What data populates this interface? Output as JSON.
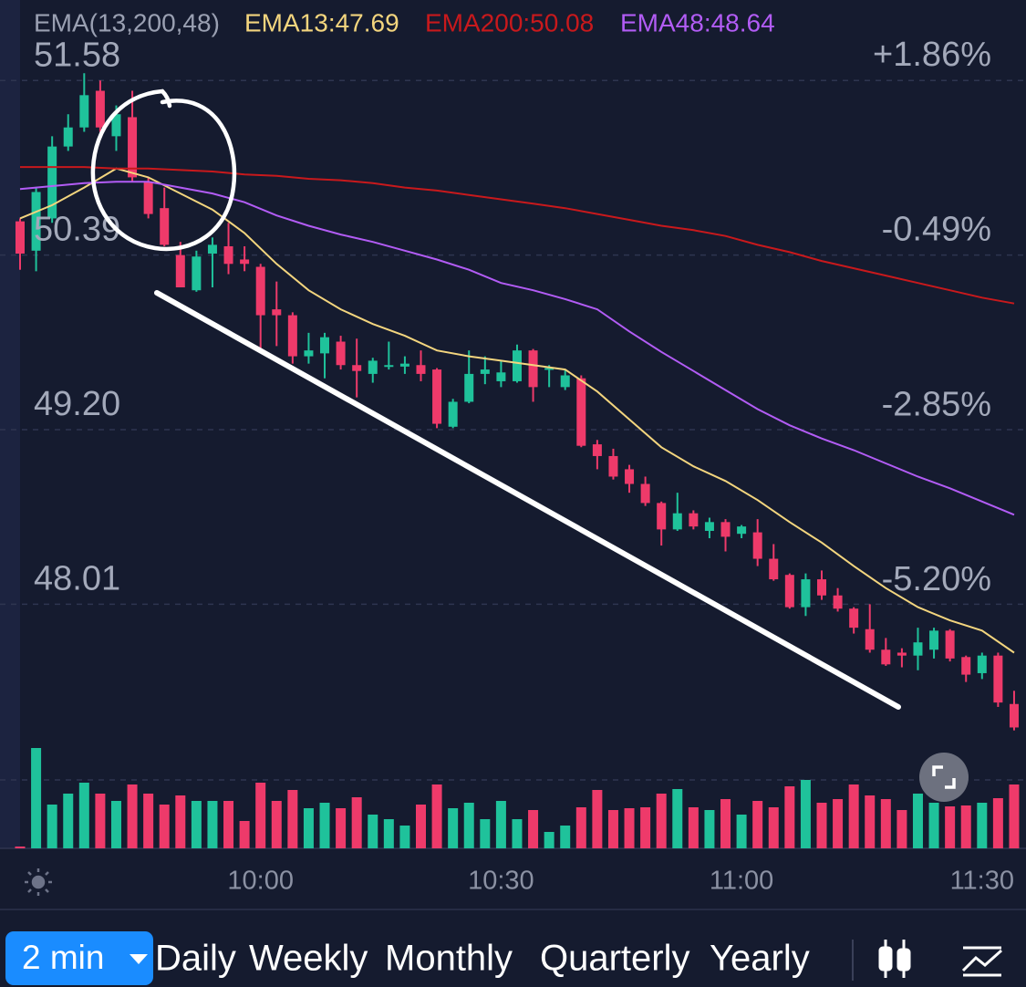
{
  "chart_data": {
    "type": "candlestick",
    "legend": {
      "label": "EMA(13,200,48)",
      "items": [
        {
          "text": "EMA13:47.69",
          "color": "#f3d57e"
        },
        {
          "text": "EMA200:50.08",
          "color": "#c8191c"
        },
        {
          "text": "EMA48:48.64",
          "color": "#b25cf5"
        }
      ]
    },
    "categories": [
      null,
      null,
      null,
      null,
      null,
      null,
      null,
      null,
      null,
      null,
      null,
      null,
      null,
      null,
      null,
      "10:00",
      null,
      null,
      null,
      null,
      null,
      null,
      null,
      null,
      null,
      null,
      null,
      null,
      null,
      null,
      "10:30",
      null,
      null,
      null,
      null,
      null,
      null,
      null,
      null,
      null,
      null,
      null,
      null,
      null,
      null,
      "11:00",
      null,
      null,
      null,
      null,
      null,
      null,
      null,
      null,
      null,
      null,
      null,
      null,
      null,
      null,
      "11:30",
      null,
      null
    ],
    "open": [
      50.62,
      50.42,
      50.64,
      51.13,
      51.26,
      51.51,
      51.2,
      51.33,
      50.89,
      50.71,
      50.39,
      50.15,
      50.4,
      50.45,
      50.36,
      50.31,
      50.02,
      49.98,
      49.7,
      49.72,
      49.8,
      49.64,
      49.58,
      49.63,
      49.63,
      49.64,
      49.61,
      49.22,
      49.39,
      49.58,
      49.53,
      49.53,
      49.74,
      49.61,
      49.49,
      49.55,
      49.1,
      49.02,
      48.93,
      48.83,
      48.7,
      48.52,
      48.63,
      48.51,
      48.57,
      48.49,
      48.5,
      48.32,
      48.21,
      47.99,
      48.18,
      48.07,
      47.98,
      47.84,
      47.7,
      47.68,
      47.66,
      47.7,
      47.83,
      47.65,
      47.54,
      47.66,
      47.33
    ],
    "high": [
      50.64,
      50.85,
      51.2,
      51.35,
      51.63,
      51.58,
      51.41,
      51.51,
      50.92,
      50.85,
      50.48,
      50.42,
      50.51,
      50.61,
      50.45,
      50.33,
      50.21,
      50.0,
      49.86,
      49.86,
      49.84,
      49.82,
      49.69,
      49.8,
      49.7,
      49.74,
      49.62,
      49.41,
      49.74,
      49.7,
      49.67,
      49.78,
      49.75,
      49.64,
      49.61,
      49.57,
      49.13,
      49.07,
      48.96,
      48.88,
      48.71,
      48.77,
      48.65,
      48.6,
      48.59,
      48.55,
      48.59,
      48.42,
      48.22,
      48.22,
      48.24,
      48.12,
      47.99,
      48.01,
      47.78,
      47.71,
      47.85,
      47.85,
      47.84,
      47.66,
      47.68,
      47.68,
      47.42
    ],
    "low": [
      50.29,
      50.28,
      50.61,
      51.1,
      51.23,
      51.23,
      51.1,
      50.89,
      50.64,
      50.45,
      50.17,
      50.14,
      50.17,
      50.26,
      50.28,
      49.74,
      49.77,
      49.65,
      49.65,
      49.55,
      49.61,
      49.42,
      49.52,
      49.61,
      49.58,
      49.53,
      49.21,
      49.21,
      49.38,
      49.51,
      49.49,
      49.52,
      49.39,
      49.49,
      49.47,
      49.08,
      48.93,
      48.86,
      48.77,
      48.68,
      48.41,
      48.51,
      48.52,
      48.46,
      48.37,
      48.46,
      48.27,
      48.17,
      47.98,
      47.93,
      48.04,
      47.96,
      47.81,
      47.68,
      47.59,
      47.58,
      47.56,
      47.64,
      47.62,
      47.48,
      47.5,
      47.31,
      47.15
    ],
    "close": [
      50.4,
      50.82,
      51.13,
      51.26,
      51.48,
      51.26,
      51.35,
      50.92,
      50.67,
      50.46,
      50.17,
      50.38,
      50.46,
      50.33,
      50.33,
      49.98,
      49.98,
      49.7,
      49.74,
      49.83,
      49.64,
      49.6,
      49.67,
      49.64,
      49.65,
      49.58,
      49.24,
      49.39,
      49.58,
      49.61,
      49.59,
      49.74,
      49.49,
      49.62,
      49.57,
      49.09,
      49.02,
      48.88,
      48.83,
      48.7,
      48.52,
      48.63,
      48.54,
      48.57,
      48.47,
      48.54,
      48.32,
      48.18,
      47.99,
      48.18,
      48.07,
      47.98,
      47.85,
      47.7,
      47.6,
      47.66,
      47.75,
      47.83,
      47.64,
      47.53,
      47.66,
      47.34,
      47.17
    ],
    "volume": [
      2,
      110,
      48,
      60,
      72,
      60,
      52,
      70,
      60,
      48,
      58,
      52,
      52,
      52,
      30,
      72,
      52,
      64,
      44,
      50,
      44,
      56,
      37,
      32,
      25,
      48,
      70,
      44,
      50,
      32,
      52,
      32,
      42,
      18,
      25,
      45,
      64,
      42,
      44,
      45,
      60,
      65,
      45,
      42,
      54,
      37,
      52,
      45,
      68,
      75,
      50,
      54,
      70,
      58,
      54,
      42,
      60,
      50,
      46,
      47,
      50,
      55,
      70
    ],
    "vlim": [
      0,
      120
    ],
    "up_color": "#1fc29b",
    "down_color": "#ee3a6a",
    "ylim": [
      47.03,
      51.88
    ],
    "yticks": [
      51.58,
      50.39,
      {
        "value": 49.2,
        "label": "49.20"
      },
      48.01
    ],
    "y2lim": [
      -7.13,
      2.45
    ],
    "y2ticks": [
      {
        "value": 1.86,
        "label": "+1.86%"
      },
      {
        "value": -0.49,
        "label": "-0.49%"
      },
      {
        "value": -2.85,
        "label": "-2.85%"
      },
      {
        "value": -5.2,
        "label": "-5.20%"
      }
    ],
    "grid": true,
    "series": [
      {
        "color": "#f3d57e",
        "x": [
          0,
          2,
          4,
          6,
          8,
          10,
          12,
          14,
          16,
          18,
          20,
          22,
          24,
          26,
          28,
          30,
          32,
          34,
          36,
          38,
          40,
          42,
          44,
          46,
          48,
          50,
          52,
          54,
          56,
          58,
          60,
          62
        ],
        "values": [
          50.64,
          50.73,
          50.85,
          50.98,
          50.92,
          50.81,
          50.7,
          50.54,
          50.33,
          50.15,
          50.02,
          49.92,
          49.84,
          49.74,
          49.7,
          49.67,
          49.64,
          49.61,
          49.46,
          49.27,
          49.08,
          48.95,
          48.85,
          48.72,
          48.57,
          48.43,
          48.27,
          48.12,
          47.99,
          47.9,
          47.83,
          47.68
        ]
      },
      {
        "color": "#c8191c",
        "x": [
          0,
          2,
          4,
          6,
          8,
          10,
          12,
          14,
          16,
          18,
          20,
          22,
          24,
          26,
          28,
          30,
          32,
          34,
          36,
          38,
          40,
          42,
          44,
          46,
          48,
          50,
          52,
          54,
          56,
          58,
          60,
          62
        ],
        "values": [
          50.99,
          50.99,
          50.99,
          50.98,
          50.98,
          50.97,
          50.96,
          50.94,
          50.93,
          50.91,
          50.9,
          50.88,
          50.85,
          50.83,
          50.8,
          50.77,
          50.74,
          50.71,
          50.67,
          50.63,
          50.59,
          50.56,
          50.52,
          50.46,
          50.41,
          50.35,
          50.3,
          50.25,
          50.2,
          50.15,
          50.1,
          50.06
        ]
      },
      {
        "color": "#b25cf5",
        "x": [
          0,
          2,
          4,
          6,
          8,
          10,
          12,
          14,
          16,
          18,
          20,
          22,
          24,
          26,
          28,
          30,
          32,
          34,
          36,
          38,
          40,
          42,
          44,
          46,
          48,
          50,
          52,
          54,
          56,
          58,
          60,
          62
        ],
        "values": [
          50.84,
          50.86,
          50.88,
          50.89,
          50.89,
          50.85,
          50.81,
          50.75,
          50.66,
          50.59,
          50.53,
          50.48,
          50.42,
          50.36,
          50.29,
          50.2,
          50.15,
          50.09,
          50.02,
          49.87,
          49.73,
          49.6,
          49.47,
          49.34,
          49.23,
          49.14,
          49.06,
          48.97,
          48.88,
          48.8,
          48.71,
          48.62
        ]
      }
    ]
  },
  "toolbar": {
    "interval": "2 min",
    "periods": [
      "Daily",
      "Weekly",
      "Monthly",
      "Quarterly",
      "Yearly"
    ]
  }
}
